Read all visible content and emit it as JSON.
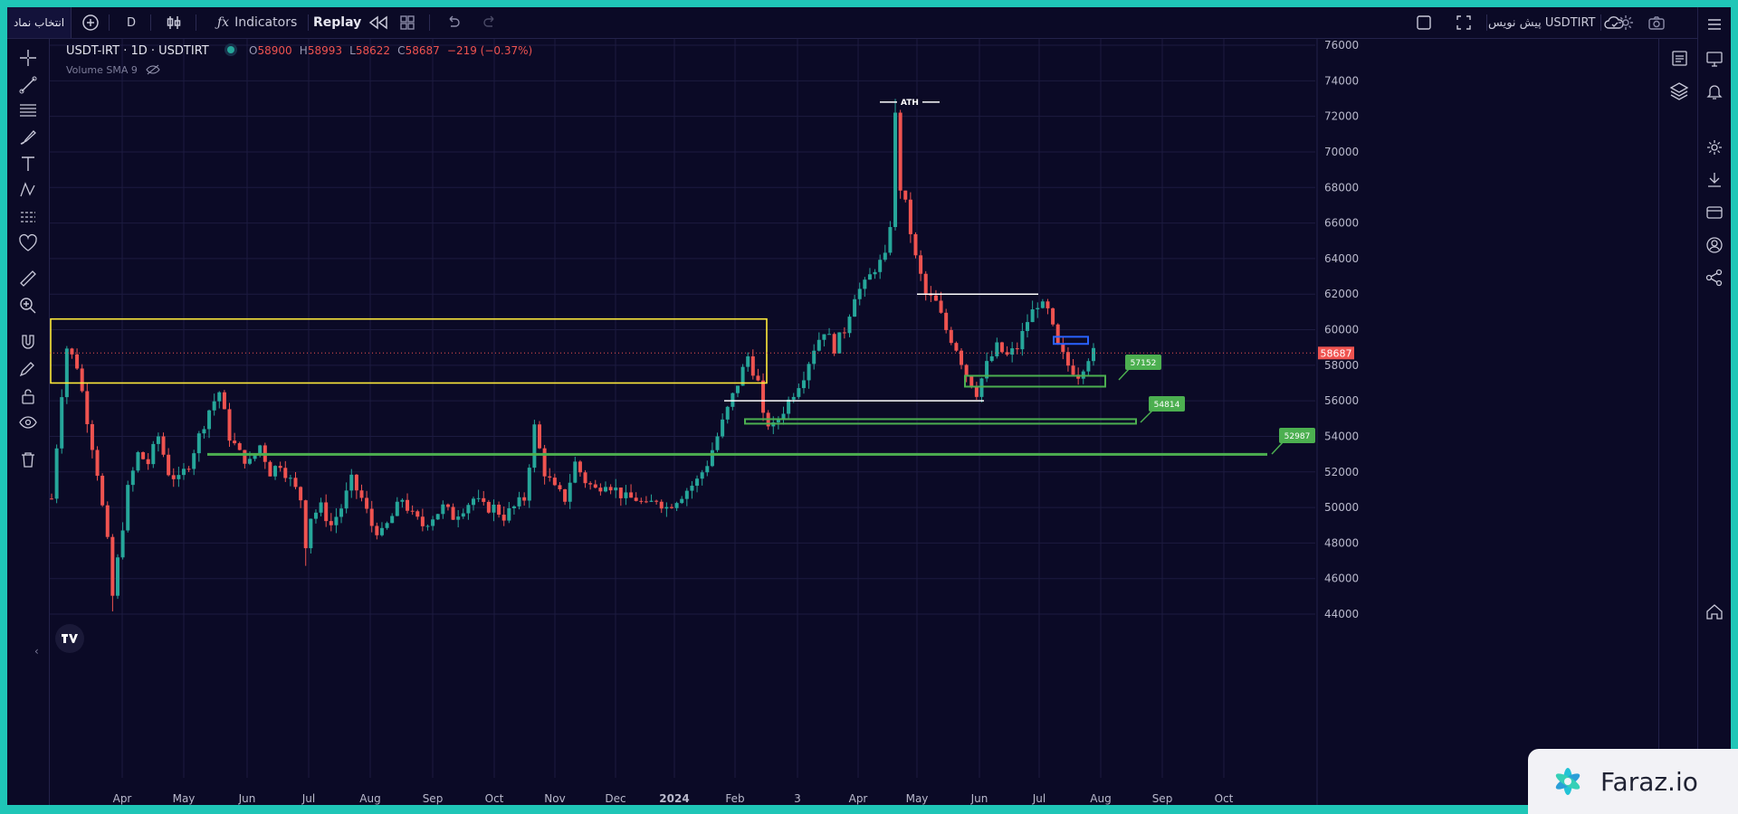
{
  "topbar": {
    "symbol_selector": "انتخاب نماد",
    "interval": "D",
    "indicators_label": "Indicators",
    "replay_label": "Replay",
    "preview_label": "پیش نویس USDTIRT"
  },
  "legend": {
    "title": "USDT-IRT · 1D · USDTIRT",
    "open_label": "O",
    "open": "58900",
    "high_label": "H",
    "high": "58993",
    "low_label": "L",
    "low": "58622",
    "close_label": "C",
    "close": "58687",
    "change": "−219 (−0.37%)",
    "volume_indicator": "Volume SMA 9"
  },
  "chart_data": {
    "type": "candlestick",
    "symbol": "USDT-IRT",
    "interval": "1D",
    "ylim": [
      44000,
      76000
    ],
    "y_ticks": [
      76000,
      74000,
      72000,
      70000,
      68000,
      66000,
      64000,
      62000,
      60000,
      58000,
      56000,
      54000,
      52000,
      50000,
      48000,
      46000,
      44000
    ],
    "x_ticks": [
      "Apr",
      "May",
      "Jun",
      "Jul",
      "Aug",
      "Sep",
      "Oct",
      "Nov",
      "Dec",
      "2024",
      "Feb",
      "3",
      "Apr",
      "May",
      "Jun",
      "Jul",
      "Aug",
      "Sep",
      "Oct"
    ],
    "last_price": "58687",
    "close_path": [
      [
        0,
        50500
      ],
      [
        2,
        56500
      ],
      [
        3,
        59000
      ],
      [
        5,
        58000
      ],
      [
        7,
        55000
      ],
      [
        9,
        52000
      ],
      [
        11,
        48000
      ],
      [
        12,
        45000
      ],
      [
        13,
        47000
      ],
      [
        15,
        51000
      ],
      [
        17,
        53000
      ],
      [
        19,
        52500
      ],
      [
        21,
        54000
      ],
      [
        23,
        52000
      ],
      [
        25,
        51500
      ],
      [
        27,
        52500
      ],
      [
        29,
        54000
      ],
      [
        31,
        55500
      ],
      [
        33,
        56500
      ],
      [
        35,
        54000
      ],
      [
        37,
        53000
      ],
      [
        39,
        52500
      ],
      [
        41,
        53500
      ],
      [
        43,
        52000
      ],
      [
        45,
        52500
      ],
      [
        47,
        51500
      ],
      [
        49,
        50500
      ],
      [
        50,
        48000
      ],
      [
        51,
        49500
      ],
      [
        53,
        50000
      ],
      [
        55,
        49000
      ],
      [
        57,
        50000
      ],
      [
        59,
        51500
      ],
      [
        61,
        50500
      ],
      [
        63,
        49000
      ],
      [
        65,
        48500
      ],
      [
        67,
        49500
      ],
      [
        69,
        50500
      ],
      [
        71,
        49500
      ],
      [
        73,
        49000
      ],
      [
        75,
        49500
      ],
      [
        77,
        50000
      ],
      [
        79,
        49500
      ],
      [
        81,
        50000
      ],
      [
        83,
        50500
      ],
      [
        85,
        50000
      ],
      [
        87,
        50000
      ],
      [
        89,
        49500
      ],
      [
        91,
        50000
      ],
      [
        93,
        50500
      ],
      [
        95,
        54500
      ],
      [
        97,
        52000
      ],
      [
        99,
        51000
      ],
      [
        101,
        50500
      ],
      [
        103,
        52500
      ],
      [
        105,
        51500
      ],
      [
        107,
        51000
      ],
      [
        109,
        51500
      ],
      [
        111,
        51000
      ],
      [
        113,
        50500
      ],
      [
        115,
        50500
      ],
      [
        117,
        50000
      ],
      [
        119,
        50500
      ],
      [
        121,
        50000
      ],
      [
        123,
        50500
      ],
      [
        125,
        51000
      ],
      [
        127,
        51500
      ],
      [
        129,
        52500
      ],
      [
        131,
        54000
      ],
      [
        133,
        55500
      ],
      [
        135,
        57000
      ],
      [
        137,
        58500
      ],
      [
        139,
        57000
      ],
      [
        140,
        55000
      ],
      [
        142,
        54500
      ],
      [
        144,
        55500
      ],
      [
        146,
        56500
      ],
      [
        148,
        57500
      ],
      [
        150,
        59000
      ],
      [
        152,
        60000
      ],
      [
        154,
        59000
      ],
      [
        156,
        60000
      ],
      [
        158,
        62000
      ],
      [
        160,
        62500
      ],
      [
        162,
        63500
      ],
      [
        164,
        64000
      ],
      [
        165,
        66000
      ],
      [
        166,
        72000
      ],
      [
        167,
        68000
      ],
      [
        168,
        67000
      ],
      [
        170,
        64000
      ],
      [
        172,
        62000
      ],
      [
        174,
        61500
      ],
      [
        176,
        60000
      ],
      [
        178,
        59000
      ],
      [
        180,
        57500
      ],
      [
        182,
        56500
      ],
      [
        184,
        58000
      ],
      [
        186,
        59000
      ],
      [
        188,
        58500
      ],
      [
        190,
        59000
      ],
      [
        192,
        60500
      ],
      [
        194,
        61500
      ],
      [
        196,
        61000
      ],
      [
        198,
        59000
      ],
      [
        200,
        58000
      ],
      [
        202,
        57500
      ],
      [
        204,
        58500
      ],
      [
        205,
        58687
      ]
    ],
    "annotations": [
      {
        "label": "ATH",
        "kind": "horizontal",
        "price": 72800
      },
      {
        "label": "57152",
        "kind": "support-zone",
        "price": 57152
      },
      {
        "label": "54814",
        "kind": "support-zone",
        "price": 54814
      },
      {
        "label": "52987",
        "kind": "support-line",
        "price": 52987
      },
      {
        "label": "",
        "kind": "resistance-box",
        "price_range": [
          57000,
          60600
        ]
      },
      {
        "label": "",
        "kind": "horizontal",
        "price": 62000
      },
      {
        "label": "",
        "kind": "horizontal",
        "price": 56000
      },
      {
        "label": "",
        "kind": "order-block",
        "price_range": [
          59200,
          59600
        ]
      }
    ],
    "colors": {
      "up": "#26a69a",
      "down": "#ef5350",
      "background": "#0b0a26",
      "grid": "#1c1b40",
      "zone": "#4caf50",
      "box": "#ffeb3b",
      "block": "#2962ff"
    }
  },
  "watermark": {
    "text": "Faraz.io"
  },
  "icons": [
    "plus-icon",
    "candles-icon",
    "fx-icon",
    "replay-icon",
    "layout-icon",
    "undo-icon",
    "redo-icon",
    "fullscreen-icon",
    "cloud-icon",
    "settings-icon",
    "camera-icon",
    "menu-icon",
    "crosshair-icon",
    "trendline-icon",
    "brush-icon",
    "text-icon",
    "pattern-icon",
    "heart-icon",
    "ruler-icon",
    "zoom-icon",
    "magnet-icon",
    "lock-icon",
    "eye-icon",
    "trash-icon",
    "watchlist-icon",
    "layers-icon",
    "alert-icon",
    "download-icon",
    "card-icon",
    "user-icon",
    "share-icon",
    "home-icon"
  ]
}
